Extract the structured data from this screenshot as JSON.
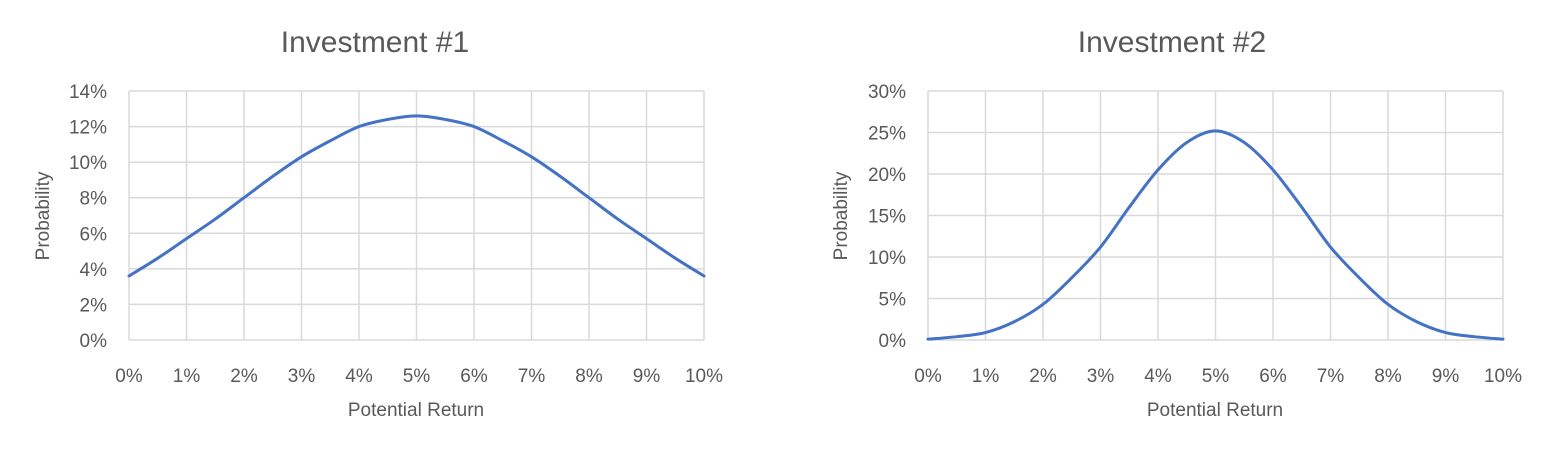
{
  "chart_data": [
    {
      "type": "line",
      "title": "Investment #1",
      "xlabel": "Potential Return",
      "ylabel": "Probability",
      "x_ticks": [
        "0%",
        "1%",
        "2%",
        "3%",
        "4%",
        "5%",
        "6%",
        "7%",
        "8%",
        "9%",
        "10%"
      ],
      "y_ticks": [
        "0%",
        "2%",
        "4%",
        "6%",
        "8%",
        "10%",
        "12%",
        "14%"
      ],
      "xlim": [
        0,
        10
      ],
      "ylim": [
        0,
        14
      ],
      "grid": true,
      "color": "#4472c4",
      "series": [
        {
          "x": [
            0,
            0.5,
            1,
            1.5,
            2,
            2.5,
            3,
            3.5,
            4,
            4.5,
            5,
            5.5,
            6,
            6.5,
            7,
            7.5,
            8,
            8.5,
            9,
            9.5,
            10
          ],
          "y": [
            3.6,
            4.6,
            5.7,
            6.8,
            8.0,
            9.2,
            10.3,
            11.2,
            12.0,
            12.4,
            12.6,
            12.4,
            12.0,
            11.2,
            10.3,
            9.2,
            8.0,
            6.8,
            5.7,
            4.6,
            3.6
          ]
        }
      ]
    },
    {
      "type": "line",
      "title": "Investment #2",
      "xlabel": "Potential Return",
      "ylabel": "Probability",
      "x_ticks": [
        "0%",
        "1%",
        "2%",
        "3%",
        "4%",
        "5%",
        "6%",
        "7%",
        "8%",
        "9%",
        "10%"
      ],
      "y_ticks": [
        "0%",
        "5%",
        "10%",
        "15%",
        "20%",
        "25%",
        "30%"
      ],
      "xlim": [
        0,
        10
      ],
      "ylim": [
        0,
        30
      ],
      "grid": true,
      "color": "#4472c4",
      "series": [
        {
          "x": [
            0,
            0.5,
            1,
            1.5,
            2,
            2.5,
            3,
            3.5,
            4,
            4.5,
            5,
            5.5,
            6,
            6.5,
            7,
            7.5,
            8,
            8.5,
            9,
            9.5,
            10
          ],
          "y": [
            0.1,
            0.4,
            0.9,
            2.2,
            4.3,
            7.5,
            11.2,
            16.0,
            20.5,
            23.8,
            25.2,
            23.8,
            20.5,
            16.0,
            11.2,
            7.5,
            4.3,
            2.2,
            0.9,
            0.4,
            0.1
          ]
        }
      ]
    }
  ]
}
